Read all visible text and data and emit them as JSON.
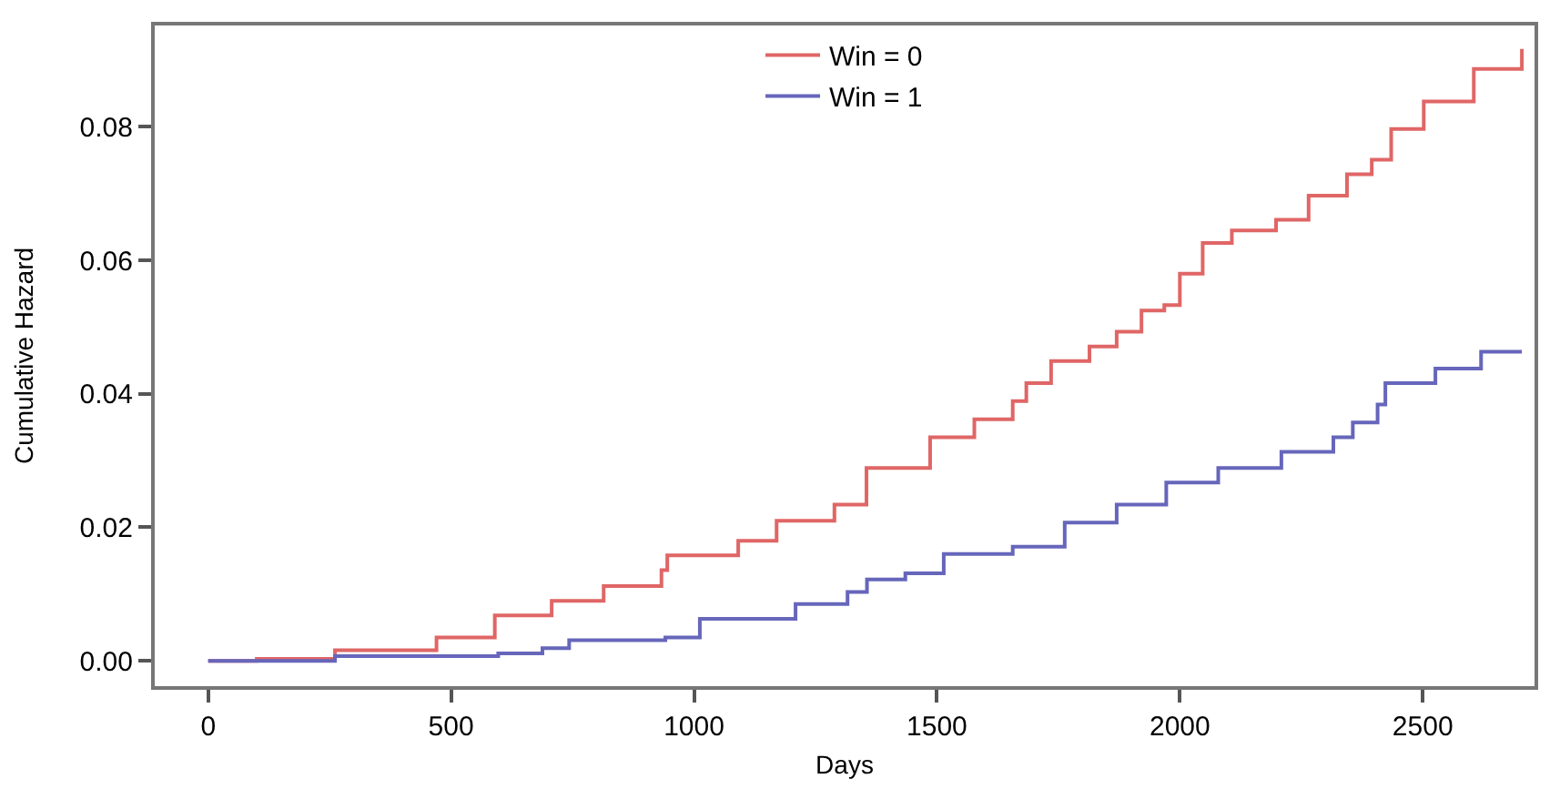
{
  "chart_data": {
    "type": "step",
    "xlabel": "Days",
    "ylabel": "Cumulative Hazard",
    "xlim": [
      -110,
      2730
    ],
    "ylim": [
      -0.0038,
      0.0952
    ],
    "xticks": [
      0,
      500,
      1000,
      1500,
      2000,
      2500
    ],
    "yticks": [
      {
        "value": 0,
        "label": "0.00"
      },
      {
        "value": 0.02,
        "label": "0.02"
      },
      {
        "value": 0.04,
        "label": "0.04"
      },
      {
        "value": 0.06,
        "label": "0.06"
      },
      {
        "value": 0.08,
        "label": "0.08"
      }
    ],
    "legend": "top",
    "marker": "none",
    "line_style": "solid",
    "series": [
      {
        "name": "Win = 0",
        "color": "#e06666",
        "x": [
          0,
          100,
          261,
          470,
          590,
          707,
          814,
          933,
          945,
          1091,
          1170,
          1221,
          1289,
          1355,
          1486,
          1577,
          1656,
          1684,
          1735,
          1814,
          1870,
          1921,
          1968,
          2000,
          2047,
          2107,
          2198,
          2265,
          2344,
          2395,
          2435,
          2502,
          2605,
          2704
        ],
        "values": [
          0,
          0.0003,
          0.0016,
          0.0035,
          0.0068,
          0.009,
          0.0112,
          0.0136,
          0.0158,
          0.018,
          0.021,
          0.021,
          0.0234,
          0.0289,
          0.0335,
          0.0362,
          0.0389,
          0.0416,
          0.0449,
          0.0471,
          0.0493,
          0.0525,
          0.0533,
          0.058,
          0.0626,
          0.0645,
          0.0661,
          0.0697,
          0.0729,
          0.0751,
          0.0797,
          0.0838,
          0.0887,
          0.0917
        ]
      },
      {
        "name": "Win = 1",
        "color": "#6666bb",
        "x": [
          0,
          261,
          597,
          688,
          743,
          941,
          1012,
          1209,
          1316,
          1356,
          1435,
          1514,
          1656,
          1763,
          1870,
          1972,
          2079,
          2209,
          2316,
          2356,
          2407,
          2423,
          2526,
          2620,
          2704
        ],
        "values": [
          0,
          0.0007,
          0.0011,
          0.0019,
          0.0031,
          0.0035,
          0.0063,
          0.0085,
          0.0103,
          0.0122,
          0.0131,
          0.016,
          0.0171,
          0.0207,
          0.0234,
          0.0267,
          0.0289,
          0.0313,
          0.0335,
          0.0357,
          0.0384,
          0.0416,
          0.0438,
          0.0463,
          0.0463
        ]
      }
    ]
  }
}
